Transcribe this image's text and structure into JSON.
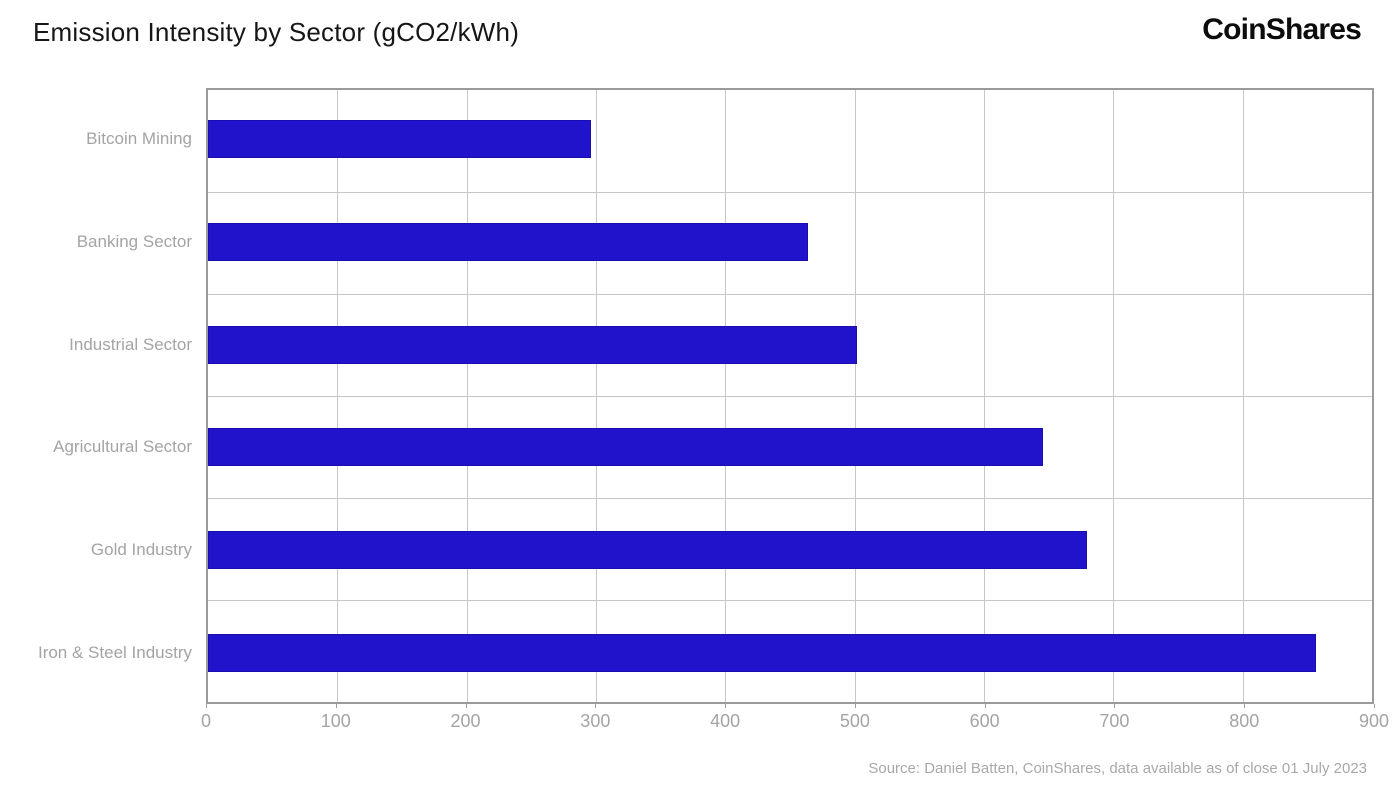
{
  "header": {
    "title": "Emission Intensity by Sector (gCO2/kWh)",
    "logo_text": "CoinShares"
  },
  "chart_data": {
    "type": "bar",
    "orientation": "horizontal",
    "title": "Emission Intensity by Sector (gCO2/kWh)",
    "categories": [
      "Bitcoin Mining",
      "Banking Sector",
      "Industrial Sector",
      "Agricultural Sector",
      "Gold Industry",
      "Iron & Steel Industry"
    ],
    "values": [
      296,
      464,
      502,
      646,
      680,
      857
    ],
    "xlabel": "",
    "ylabel": "",
    "xlim": [
      0,
      900
    ],
    "x_ticks": [
      0,
      100,
      200,
      300,
      400,
      500,
      600,
      700,
      800,
      900
    ],
    "grid": true,
    "legend": "none",
    "bar_color": "#2113cc"
  },
  "footer": {
    "source": "Source: Daniel Batten, CoinShares, data available as of close 01 July 2023"
  },
  "colors": {
    "bar": "#2113cc",
    "bar_border": "#1a0fae",
    "grid_line": "#c7c7c7",
    "plot_border": "#9b9b9b",
    "axis_text": "#a4a4a4",
    "title_text": "#161616",
    "logo_text": "#0c0c0c"
  }
}
